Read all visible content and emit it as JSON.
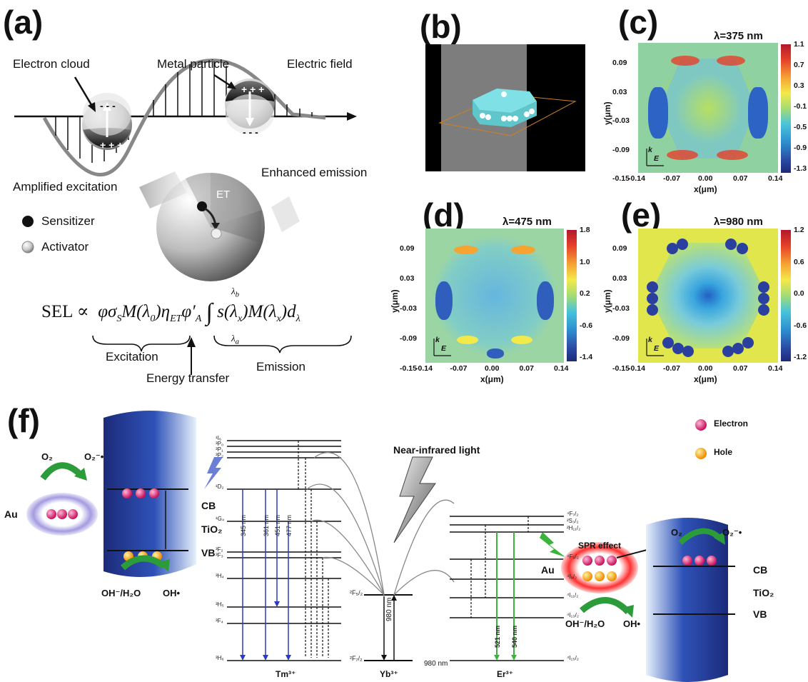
{
  "panels": {
    "a": {
      "label": "(a)",
      "electron_cloud": "Electron cloud",
      "metal_particle": "Metal particle",
      "electric_field": "Electric field",
      "amplified_excitation": "Amplified excitation",
      "enhanced_emission": "Enhanced emission",
      "et": "ET",
      "sensitizer": "Sensitizer",
      "activator": "Activator",
      "minus": "- - -",
      "plus": "+ + +",
      "formula_lhs": "SEL ∝",
      "excitation": "Excitation",
      "energy_transfer": "Energy transfer",
      "emission": "Emission"
    },
    "b": {
      "label": "(b)"
    },
    "c": {
      "label": "(c)",
      "lambda": "λ=375 nm",
      "colorbar": [
        "1.1",
        "0.7",
        "0.3",
        "-0.1",
        "-0.5",
        "-0.9",
        "-1.3"
      ]
    },
    "d": {
      "label": "(d)",
      "lambda": "λ=475 nm",
      "colorbar": [
        "1.8",
        "1.0",
        "0.2",
        "-0.6",
        "-1.4"
      ]
    },
    "e": {
      "label": "(e)",
      "lambda": "λ=980 nm",
      "colorbar": [
        "1.2",
        "0.6",
        "0.0",
        "-0.6",
        "-1.2"
      ]
    },
    "common": {
      "xticks": [
        "-0.14",
        "-0.07",
        "0.00",
        "0.07",
        "0.14"
      ],
      "yticks": [
        "0.09",
        "0.03",
        "-0.03",
        "-0.09",
        "-0.15"
      ],
      "xlabel": "x(μm)",
      "ylabel": "y(μm)",
      "k": "k",
      "E": "E"
    },
    "f": {
      "label": "(f)",
      "electron": "Electron",
      "hole": "Hole",
      "nir": "Near-infrared light",
      "au": "Au",
      "o2": "O₂",
      "o2rad": "O₂⁻•",
      "cb": "CB",
      "tio2": "TiO₂",
      "vb": "VB",
      "oh_h2o": "OH⁻/H₂O",
      "oh_rad": "OH•",
      "spr": "SPR effect",
      "tm": "Tm³⁺",
      "yb": "Yb³⁺",
      "er": "Er³⁺",
      "nm980": "980 nm",
      "tm_lines": [
        "345 nm",
        "361 nm",
        "451 nm",
        "477 nm"
      ],
      "er_lines": [
        "521 nm",
        "540 nm"
      ],
      "yb_line": "980 nm",
      "tm_levels": [
        "¹I₆",
        "³P₀",
        "³P₁",
        "³P₂",
        "¹D₂",
        "¹G₄",
        "³F₂",
        "³F₃",
        "³H₄",
        "³H₅",
        "³F₄",
        "³H₆"
      ],
      "yb_levels": [
        "²F₅/₂",
        "²F₇/₂"
      ],
      "er_levels": [
        "⁴F₇/₂",
        "²S₃/₂",
        "²H₁₁/₂",
        "⁴F₉/₂",
        "⁴I₉/₂",
        "⁴I₁₁/₂",
        "⁴I₁₃/₂",
        "⁴I₁₅/₂"
      ]
    }
  }
}
